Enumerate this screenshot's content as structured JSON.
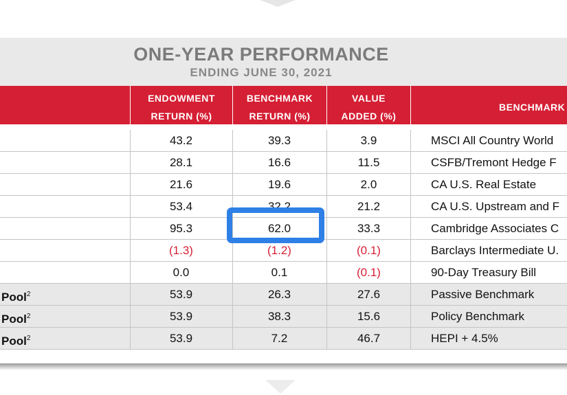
{
  "table": {
    "title": "ONE-YEAR PERFORMANCE",
    "subtitle": "ENDING JUNE 30, 2021",
    "columns": {
      "endowment": [
        "ENDOWMENT",
        "RETURN (%)"
      ],
      "benchmark": [
        "BENCHMARK",
        "RETURN (%)"
      ],
      "value_added": [
        "VALUE",
        "ADDED (%)"
      ],
      "benchmark_name": "BENCHMARK"
    },
    "rows": [
      {
        "label": "",
        "endowment": "43.2",
        "benchmark": "39.3",
        "value_added": "3.9",
        "benchmark_name": "MSCI All Country World"
      },
      {
        "label": "",
        "endowment": "28.1",
        "benchmark": "16.6",
        "value_added": "11.5",
        "benchmark_name": "CSFB/Tremont Hedge F"
      },
      {
        "label": "",
        "endowment": "21.6",
        "benchmark": "19.6",
        "value_added": "2.0",
        "benchmark_name": "CA U.S. Real Estate"
      },
      {
        "label": "",
        "endowment": "53.4",
        "benchmark": "32.2",
        "value_added": "21.2",
        "benchmark_name": "CA U.S. Upstream and F"
      },
      {
        "label": "",
        "endowment": "95.3",
        "benchmark": "62.0",
        "value_added": "33.3",
        "benchmark_name": "Cambridge Associates C"
      },
      {
        "label": "",
        "endowment": "(1.3)",
        "benchmark": "(1.2)",
        "value_added": "(0.1)",
        "benchmark_name": "Barclays Intermediate U."
      },
      {
        "label": "",
        "endowment": "0.0",
        "benchmark": "0.1",
        "value_added": "(0.1)",
        "benchmark_name": "90-Day Treasury Bill"
      },
      {
        "label": "Pool",
        "footnote": "2",
        "endowment": "53.9",
        "benchmark": "26.3",
        "value_added": "27.6",
        "benchmark_name": "Passive Benchmark"
      },
      {
        "label": "Pool",
        "footnote": "2",
        "endowment": "53.9",
        "benchmark": "38.3",
        "value_added": "15.6",
        "benchmark_name": "Policy Benchmark"
      },
      {
        "label": "Pool",
        "footnote": "2",
        "endowment": "53.9",
        "benchmark": "7.2",
        "value_added": "46.7",
        "benchmark_name": "HEPI + 4.5%"
      }
    ],
    "highlighted_cell": "62.0",
    "colors": {
      "header_red": "#d51f34",
      "negative": "#d51f34",
      "highlight_border": "#2e80e6",
      "title_gray": "#7b7b7b"
    }
  }
}
